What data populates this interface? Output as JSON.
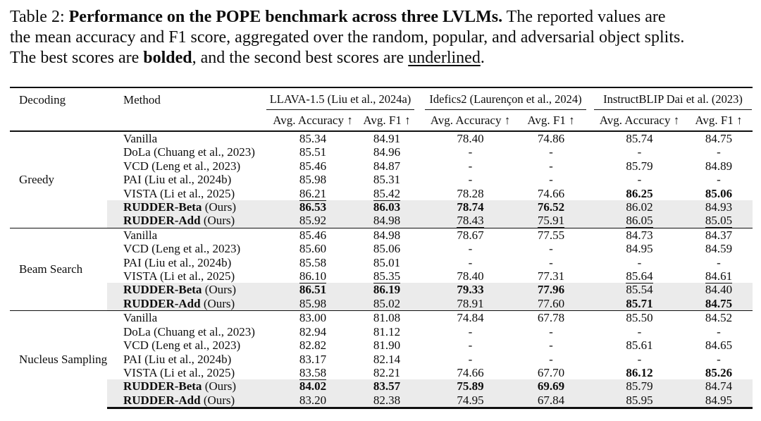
{
  "caption": {
    "prefix": "Table 2: ",
    "title": "Performance on the POPE benchmark across three LVLMs.",
    "line1_rest": " The reported values are",
    "line2": "the mean accuracy and F1 score, aggregated over the random, popular, and adversarial object splits.",
    "line3_pre": "The best scores are ",
    "line3_bold": "bolded",
    "line3_mid": ", and the second best scores are ",
    "line3_underline": "underlined",
    "line3_end": "."
  },
  "colors": {
    "highlight_row": "#ebebeb",
    "rule": "#101010",
    "text": "#0d0d0d",
    "background": "#ffffff"
  },
  "table": {
    "headers": {
      "decoding": "Decoding",
      "method": "Method"
    },
    "groups": [
      {
        "label": "LLAVA-1.5 (Liu et al., 2024a)",
        "sub": [
          "Avg. Accuracy ↑",
          "Avg. F1 ↑"
        ]
      },
      {
        "label": "Idefics2 (Laurençon et al., 2024)",
        "sub": [
          "Avg. Accuracy ↑",
          "Avg. F1 ↑"
        ]
      },
      {
        "label": "InstructBLIP Dai et al. (2023)",
        "sub": [
          "Avg. Accuracy ↑",
          "Avg. F1 ↑"
        ]
      }
    ],
    "style_legend": {
      "b": "best (bold)",
      "u": "second best (underlined)"
    },
    "sections": [
      {
        "decoding": "Greedy",
        "rows": [
          {
            "method": {
              "strong": "",
              "text": "Vanilla"
            },
            "ours": false,
            "cells": [
              {
                "v": "85.34"
              },
              {
                "v": "84.91"
              },
              {
                "v": "78.40"
              },
              {
                "v": "74.86"
              },
              {
                "v": "85.74"
              },
              {
                "v": "84.75"
              }
            ]
          },
          {
            "method": {
              "strong": "",
              "text": "DoLa (Chuang et al., 2023)"
            },
            "ours": false,
            "cells": [
              {
                "v": "85.51"
              },
              {
                "v": "84.96"
              },
              {
                "v": "-"
              },
              {
                "v": "-"
              },
              {
                "v": "-"
              },
              {
                "v": "-"
              }
            ]
          },
          {
            "method": {
              "strong": "",
              "text": "VCD (Leng et al., 2023)"
            },
            "ours": false,
            "cells": [
              {
                "v": "85.46"
              },
              {
                "v": "84.87"
              },
              {
                "v": "-"
              },
              {
                "v": "-"
              },
              {
                "v": "85.79"
              },
              {
                "v": "84.89"
              }
            ]
          },
          {
            "method": {
              "strong": "",
              "text": "PAI (Liu et al., 2024b)"
            },
            "ours": false,
            "cells": [
              {
                "v": "85.98"
              },
              {
                "v": "85.31"
              },
              {
                "v": "-"
              },
              {
                "v": "-"
              },
              {
                "v": "-"
              },
              {
                "v": "-"
              }
            ]
          },
          {
            "method": {
              "strong": "",
              "text": "VISTA (Li et al., 2025)"
            },
            "ours": false,
            "cells": [
              {
                "v": "86.21",
                "s": "u"
              },
              {
                "v": "85.42",
                "s": "u"
              },
              {
                "v": "78.28"
              },
              {
                "v": "74.66"
              },
              {
                "v": "86.25",
                "s": "b"
              },
              {
                "v": "85.06",
                "s": "b"
              }
            ]
          },
          {
            "method": {
              "strong": "RUDDER-Beta",
              "text": " (Ours)"
            },
            "ours": true,
            "cells": [
              {
                "v": "86.53",
                "s": "b"
              },
              {
                "v": "86.03",
                "s": "b"
              },
              {
                "v": "78.74",
                "s": "b"
              },
              {
                "v": "76.52",
                "s": "b"
              },
              {
                "v": "86.02"
              },
              {
                "v": "84.93"
              }
            ]
          },
          {
            "method": {
              "strong": "RUDDER-Add",
              "text": " (Ours)"
            },
            "ours": true,
            "cells": [
              {
                "v": "85.92"
              },
              {
                "v": "84.98"
              },
              {
                "v": "78.43",
                "s": "u"
              },
              {
                "v": "75.91",
                "s": "u"
              },
              {
                "v": "86.05",
                "s": "u"
              },
              {
                "v": "85.05",
                "s": "u"
              }
            ]
          }
        ]
      },
      {
        "decoding": "Beam Search",
        "rows": [
          {
            "method": {
              "strong": "",
              "text": "Vanilla"
            },
            "ours": false,
            "cells": [
              {
                "v": "85.46"
              },
              {
                "v": "84.98"
              },
              {
                "v": "78.67"
              },
              {
                "v": "77.55"
              },
              {
                "v": "84.73"
              },
              {
                "v": "84.37"
              }
            ]
          },
          {
            "method": {
              "strong": "",
              "text": "VCD (Leng et al., 2023)"
            },
            "ours": false,
            "cells": [
              {
                "v": "85.60"
              },
              {
                "v": "85.06"
              },
              {
                "v": "-"
              },
              {
                "v": "-"
              },
              {
                "v": "84.95"
              },
              {
                "v": "84.59"
              }
            ]
          },
          {
            "method": {
              "strong": "",
              "text": "PAI (Liu et al., 2024b)"
            },
            "ours": false,
            "cells": [
              {
                "v": "85.58"
              },
              {
                "v": "85.01"
              },
              {
                "v": "-"
              },
              {
                "v": "-"
              },
              {
                "v": "-"
              },
              {
                "v": "-"
              }
            ]
          },
          {
            "method": {
              "strong": "",
              "text": "VISTA (Li et al., 2025)"
            },
            "ours": false,
            "cells": [
              {
                "v": "86.10",
                "s": "u"
              },
              {
                "v": "85.35",
                "s": "u"
              },
              {
                "v": "78.40"
              },
              {
                "v": "77.31"
              },
              {
                "v": "85.64",
                "s": "u"
              },
              {
                "v": "84.61",
                "s": "u"
              }
            ]
          },
          {
            "method": {
              "strong": "RUDDER-Beta",
              "text": " (Ours)"
            },
            "ours": true,
            "cells": [
              {
                "v": "86.51",
                "s": "b"
              },
              {
                "v": "86.19",
                "s": "b"
              },
              {
                "v": "79.33",
                "s": "b"
              },
              {
                "v": "77.96",
                "s": "b"
              },
              {
                "v": "85.54"
              },
              {
                "v": "84.40"
              }
            ]
          },
          {
            "method": {
              "strong": "RUDDER-Add",
              "text": " (Ours)"
            },
            "ours": true,
            "cells": [
              {
                "v": "85.98"
              },
              {
                "v": "85.02"
              },
              {
                "v": "78.91",
                "s": "u"
              },
              {
                "v": "77.60",
                "s": "u"
              },
              {
                "v": "85.71",
                "s": "b"
              },
              {
                "v": "84.75",
                "s": "b"
              }
            ]
          }
        ]
      },
      {
        "decoding": "Nucleus Sampling",
        "rows": [
          {
            "method": {
              "strong": "",
              "text": "Vanilla"
            },
            "ours": false,
            "cells": [
              {
                "v": "83.00"
              },
              {
                "v": "81.08"
              },
              {
                "v": "74.84"
              },
              {
                "v": "67.78"
              },
              {
                "v": "85.50"
              },
              {
                "v": "84.52"
              }
            ]
          },
          {
            "method": {
              "strong": "",
              "text": "DoLa (Chuang et al., 2023)"
            },
            "ours": false,
            "cells": [
              {
                "v": "82.94"
              },
              {
                "v": "81.12"
              },
              {
                "v": "-"
              },
              {
                "v": "-"
              },
              {
                "v": "-"
              },
              {
                "v": "-"
              }
            ]
          },
          {
            "method": {
              "strong": "",
              "text": "VCD (Leng et al., 2023)"
            },
            "ours": false,
            "cells": [
              {
                "v": "82.82"
              },
              {
                "v": "81.90"
              },
              {
                "v": "-"
              },
              {
                "v": "-"
              },
              {
                "v": "85.61"
              },
              {
                "v": "84.65"
              }
            ]
          },
          {
            "method": {
              "strong": "",
              "text": "PAI (Liu et al., 2024b)"
            },
            "ours": false,
            "cells": [
              {
                "v": "83.17"
              },
              {
                "v": "82.14"
              },
              {
                "v": "-"
              },
              {
                "v": "-"
              },
              {
                "v": "-"
              },
              {
                "v": "-"
              }
            ]
          },
          {
            "method": {
              "strong": "",
              "text": "VISTA (Li et al., 2025)"
            },
            "ours": false,
            "cells": [
              {
                "v": "83.58",
                "s": "u"
              },
              {
                "v": "82.21"
              },
              {
                "v": "74.66"
              },
              {
                "v": "67.70"
              },
              {
                "v": "86.12",
                "s": "b"
              },
              {
                "v": "85.26",
                "s": "b"
              }
            ]
          },
          {
            "method": {
              "strong": "RUDDER-Beta",
              "text": " (Ours)"
            },
            "ours": true,
            "cells": [
              {
                "v": "84.02",
                "s": "b"
              },
              {
                "v": "83.57",
                "s": "b"
              },
              {
                "v": "75.89",
                "s": "b"
              },
              {
                "v": "69.69",
                "s": "b"
              },
              {
                "v": "85.79"
              },
              {
                "v": "84.74"
              }
            ]
          },
          {
            "method": {
              "strong": "RUDDER-Add",
              "text": " (Ours)"
            },
            "ours": true,
            "cells": [
              {
                "v": "83.20"
              },
              {
                "v": "82.38",
                "s": "u"
              },
              {
                "v": "74.95",
                "s": "u"
              },
              {
                "v": "67.84",
                "s": "u"
              },
              {
                "v": "85.95",
                "s": "u"
              },
              {
                "v": "84.95",
                "s": "u"
              }
            ]
          }
        ]
      }
    ]
  }
}
